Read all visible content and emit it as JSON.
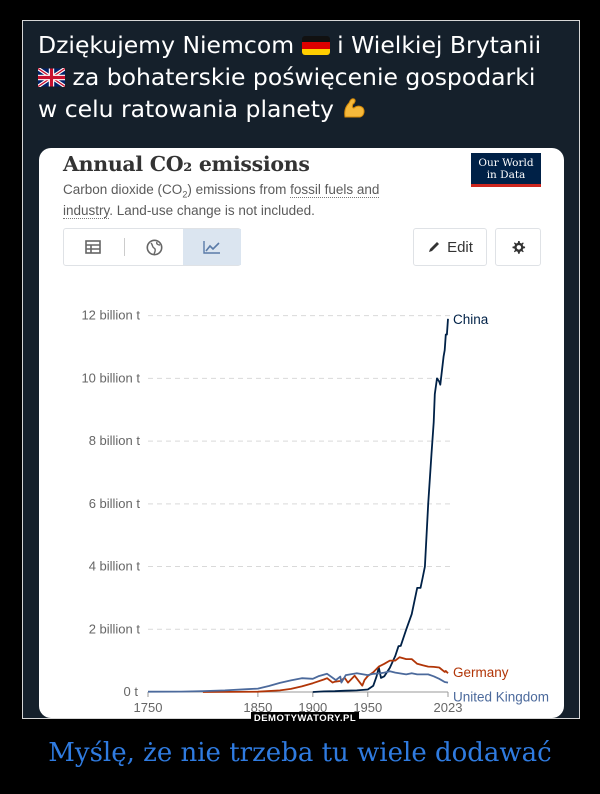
{
  "post": {
    "line1_a": "Dziękujemy Niemcom",
    "line1_b": "i Wielkiej Brytanii",
    "line2": "za bohaterskie poświęcenie gospodarki",
    "line3": "w celu ratowania planety"
  },
  "card": {
    "title": "Annual CO₂ emissions",
    "subtitle_a": "Carbon dioxide (CO",
    "subtitle_sub": "2",
    "subtitle_b": ") emissions from ",
    "subtitle_link": "fossil fuels and industry",
    "subtitle_c": ". Land-use change is not included.",
    "logo_line1": "Our World",
    "logo_line2": "in Data",
    "edit_label": "Edit",
    "icons": {
      "table": "table-icon",
      "map": "globe-icon",
      "chart": "line-chart-icon",
      "edit": "pencil-icon",
      "settings": "gear-icon"
    }
  },
  "chart_data": {
    "type": "line",
    "title": "Annual CO₂ emissions",
    "ylim": [
      0,
      12500000000
    ],
    "xlim": [
      1750,
      2023
    ],
    "y_ticks": [
      {
        "value": 0,
        "label": "0 t"
      },
      {
        "value": 2000000000,
        "label": "2 billion t"
      },
      {
        "value": 4000000000,
        "label": "4 billion t"
      },
      {
        "value": 6000000000,
        "label": "6 billion t"
      },
      {
        "value": 8000000000,
        "label": "8 billion t"
      },
      {
        "value": 10000000000,
        "label": "10 billion t"
      },
      {
        "value": 12000000000,
        "label": "12 billion t"
      }
    ],
    "x_ticks": [
      1750,
      1850,
      1900,
      1950,
      2023
    ],
    "grid": true,
    "series": [
      {
        "name": "China",
        "color": "#002147",
        "points": [
          [
            1900,
            0
          ],
          [
            1910,
            20000000
          ],
          [
            1920,
            25000000
          ],
          [
            1930,
            40000000
          ],
          [
            1940,
            50000000
          ],
          [
            1950,
            80000000
          ],
          [
            1955,
            200000000
          ],
          [
            1958,
            500000000
          ],
          [
            1960,
            780000000
          ],
          [
            1962,
            450000000
          ],
          [
            1965,
            500000000
          ],
          [
            1970,
            770000000
          ],
          [
            1975,
            1150000000
          ],
          [
            1978,
            1460000000
          ],
          [
            1980,
            1470000000
          ],
          [
            1985,
            1990000000
          ],
          [
            1990,
            2480000000
          ],
          [
            1995,
            3320000000
          ],
          [
            1998,
            3320000000
          ],
          [
            2000,
            3650000000
          ],
          [
            2002,
            4000000000
          ],
          [
            2005,
            6000000000
          ],
          [
            2008,
            7600000000
          ],
          [
            2010,
            8600000000
          ],
          [
            2011,
            9500000000
          ],
          [
            2013,
            10000000000
          ],
          [
            2015,
            9900000000
          ],
          [
            2016,
            9800000000
          ],
          [
            2019,
            10700000000
          ],
          [
            2020,
            10900000000
          ],
          [
            2021,
            11400000000
          ],
          [
            2022,
            11400000000
          ],
          [
            2023,
            11900000000
          ]
        ]
      },
      {
        "name": "Germany",
        "color": "#b13507",
        "points": [
          [
            1800,
            0
          ],
          [
            1850,
            10000000
          ],
          [
            1870,
            50000000
          ],
          [
            1880,
            100000000
          ],
          [
            1890,
            180000000
          ],
          [
            1900,
            280000000
          ],
          [
            1910,
            400000000
          ],
          [
            1913,
            440000000
          ],
          [
            1918,
            300000000
          ],
          [
            1920,
            330000000
          ],
          [
            1925,
            350000000
          ],
          [
            1929,
            450000000
          ],
          [
            1932,
            300000000
          ],
          [
            1938,
            520000000
          ],
          [
            1945,
            200000000
          ],
          [
            1947,
            380000000
          ],
          [
            1950,
            510000000
          ],
          [
            1955,
            630000000
          ],
          [
            1960,
            810000000
          ],
          [
            1965,
            900000000
          ],
          [
            1970,
            1000000000
          ],
          [
            1975,
            1000000000
          ],
          [
            1979,
            1110000000
          ],
          [
            1985,
            1050000000
          ],
          [
            1990,
            1050000000
          ],
          [
            1995,
            900000000
          ],
          [
            2000,
            850000000
          ],
          [
            2005,
            810000000
          ],
          [
            2010,
            800000000
          ],
          [
            2015,
            780000000
          ],
          [
            2020,
            640000000
          ],
          [
            2021,
            670000000
          ],
          [
            2023,
            600000000
          ]
        ]
      },
      {
        "name": "United Kingdom",
        "color": "#4c6a9c",
        "points": [
          [
            1750,
            9000000
          ],
          [
            1780,
            12000000
          ],
          [
            1800,
            30000000
          ],
          [
            1820,
            50000000
          ],
          [
            1840,
            90000000
          ],
          [
            1850,
            110000000
          ],
          [
            1860,
            190000000
          ],
          [
            1870,
            290000000
          ],
          [
            1880,
            370000000
          ],
          [
            1890,
            440000000
          ],
          [
            1900,
            420000000
          ],
          [
            1905,
            500000000
          ],
          [
            1913,
            580000000
          ],
          [
            1921,
            380000000
          ],
          [
            1925,
            490000000
          ],
          [
            1926,
            300000000
          ],
          [
            1930,
            540000000
          ],
          [
            1940,
            600000000
          ],
          [
            1950,
            540000000
          ],
          [
            1955,
            580000000
          ],
          [
            1960,
            590000000
          ],
          [
            1965,
            620000000
          ],
          [
            1970,
            660000000
          ],
          [
            1975,
            620000000
          ],
          [
            1980,
            590000000
          ],
          [
            1985,
            560000000
          ],
          [
            1990,
            600000000
          ],
          [
            1995,
            560000000
          ],
          [
            2000,
            560000000
          ],
          [
            2005,
            560000000
          ],
          [
            2010,
            500000000
          ],
          [
            2015,
            420000000
          ],
          [
            2020,
            320000000
          ],
          [
            2023,
            300000000
          ]
        ]
      }
    ]
  },
  "site": {
    "watermark": "DEMOTYWATORY.PL",
    "caption": "Myślę, że nie trzeba tu wiele dodawać"
  }
}
